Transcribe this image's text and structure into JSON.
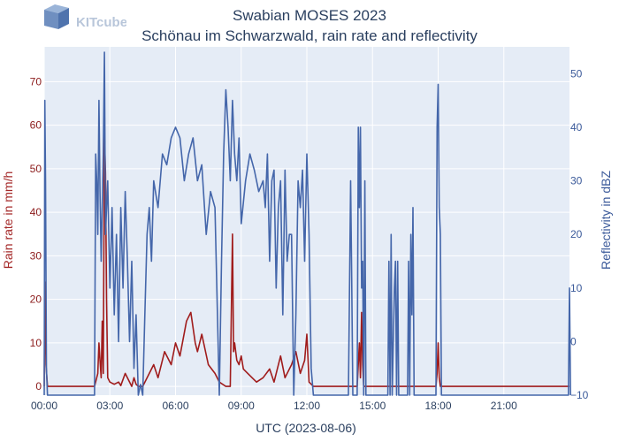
{
  "logo": {
    "text": "KITcube",
    "icon": "kitcube-cube-icon"
  },
  "title": {
    "line1": "Swabian MOSES 2023",
    "line2": "Schönau im Schwarzwald, rain rate and reflectivity"
  },
  "colors": {
    "rain": "#a01c1c",
    "reflectivity": "#4466aa",
    "plot_bg": "#e5ecf6",
    "grid": "#ffffff"
  },
  "chart_data": {
    "type": "line",
    "title": "Swabian MOSES 2023",
    "subtitle": "Schönau im Schwarzwald, rain rate and reflectivity",
    "xlabel": "UTC (2023-08-06)",
    "ylabel_left": "Rain rate in mm/h",
    "ylabel_right": "Reflectivity in dBZ",
    "x_range_hours": [
      0,
      24
    ],
    "x_ticks": [
      "00:00",
      "03:00",
      "06:00",
      "09:00",
      "12:00",
      "15:00",
      "18:00",
      "21:00"
    ],
    "y_left_range": [
      -2,
      78
    ],
    "y_left_ticks": [
      0,
      10,
      20,
      30,
      40,
      50,
      60,
      70
    ],
    "y_right_range": [
      -10,
      55
    ],
    "y_right_ticks": [
      -10,
      0,
      10,
      20,
      30,
      40,
      50
    ],
    "grid": true,
    "series": [
      {
        "name": "Rain rate",
        "axis": "left",
        "x": [
          0,
          0.03,
          0.08,
          0.15,
          2.3,
          2.45,
          2.5,
          2.55,
          2.6,
          2.65,
          2.7,
          2.75,
          2.8,
          2.85,
          2.9,
          3.0,
          3.2,
          3.4,
          3.5,
          3.7,
          4.0,
          4.1,
          4.2,
          4.3,
          4.5,
          5.0,
          5.2,
          5.5,
          5.8,
          6.0,
          6.2,
          6.5,
          6.7,
          6.9,
          7.0,
          7.2,
          7.5,
          7.8,
          8.0,
          8.3,
          8.5,
          8.6,
          8.65,
          8.7,
          8.8,
          8.9,
          9.0,
          9.1,
          9.3,
          9.5,
          9.7,
          10.0,
          10.3,
          10.5,
          10.8,
          11.0,
          11.3,
          11.5,
          11.7,
          11.9,
          12.0,
          12.1,
          12.3,
          14.3,
          14.4,
          14.45,
          14.5,
          14.55,
          14.6,
          14.7,
          17.9,
          17.95,
          18.0,
          18.05,
          18.1,
          24.0
        ],
        "y": [
          0,
          24,
          5,
          0,
          0,
          3,
          10,
          6,
          2,
          15,
          3,
          58,
          49,
          20,
          2,
          1,
          0.5,
          1,
          0.2,
          3,
          0,
          2,
          0.5,
          0,
          0,
          5,
          2,
          8,
          5,
          10,
          7,
          15,
          17,
          10,
          8,
          12,
          5,
          3,
          1,
          0,
          0,
          35,
          8,
          10,
          6,
          5,
          7,
          4,
          3,
          2,
          1,
          2,
          4,
          1,
          7,
          2,
          5,
          8,
          3,
          6,
          12,
          1,
          0,
          0,
          10,
          2,
          17,
          5,
          0,
          0,
          0,
          3,
          10,
          2,
          0,
          0
        ]
      },
      {
        "name": "Reflectivity",
        "axis": "right",
        "x": [
          0,
          0.03,
          0.06,
          0.1,
          0.15,
          0.2,
          2.3,
          2.35,
          2.4,
          2.45,
          2.5,
          2.55,
          2.6,
          2.7,
          2.75,
          2.8,
          2.9,
          3.0,
          3.1,
          3.2,
          3.3,
          3.4,
          3.5,
          3.6,
          3.7,
          3.8,
          3.9,
          4.0,
          4.1,
          4.2,
          4.3,
          4.4,
          4.5,
          4.6,
          4.7,
          4.8,
          4.9,
          5.0,
          5.2,
          5.4,
          5.6,
          5.8,
          6.0,
          6.2,
          6.4,
          6.6,
          6.8,
          7.0,
          7.2,
          7.4,
          7.6,
          7.8,
          8.0,
          8.1,
          8.2,
          8.3,
          8.4,
          8.5,
          8.6,
          8.7,
          8.8,
          8.9,
          9.0,
          9.2,
          9.4,
          9.6,
          9.8,
          10.0,
          10.1,
          10.2,
          10.3,
          10.4,
          10.5,
          10.6,
          10.7,
          10.8,
          10.9,
          11.0,
          11.1,
          11.2,
          11.3,
          11.4,
          11.5,
          11.6,
          11.7,
          11.8,
          11.9,
          12.0,
          12.1,
          12.2,
          12.3,
          12.35,
          13.9,
          14.0,
          14.05,
          14.1,
          14.3,
          14.35,
          14.4,
          14.45,
          14.5,
          14.55,
          14.6,
          14.65,
          14.7,
          14.75,
          15.7,
          15.75,
          15.8,
          15.85,
          15.9,
          16.0,
          16.05,
          16.1,
          16.15,
          16.2,
          16.6,
          16.65,
          16.7,
          16.75,
          16.8,
          16.85,
          16.9,
          17.9,
          17.95,
          18.0,
          18.05,
          18.1,
          18.15,
          23.9,
          23.95,
          24.0,
          24.05
        ],
        "y": [
          -10,
          45,
          30,
          -5,
          -10,
          -10,
          -10,
          35,
          30,
          20,
          45,
          28,
          15,
          35,
          54,
          20,
          30,
          10,
          25,
          5,
          20,
          0,
          25,
          10,
          28,
          15,
          0,
          15,
          -5,
          5,
          -10,
          -8,
          -10,
          5,
          20,
          25,
          15,
          30,
          25,
          35,
          33,
          38,
          40,
          38,
          30,
          35,
          38,
          30,
          33,
          20,
          28,
          25,
          -10,
          15,
          35,
          47,
          40,
          30,
          45,
          35,
          30,
          38,
          22,
          30,
          35,
          32,
          28,
          30,
          25,
          35,
          15,
          30,
          32,
          10,
          25,
          30,
          5,
          32,
          15,
          20,
          20,
          -10,
          5,
          30,
          25,
          32,
          15,
          35,
          20,
          -5,
          -10,
          -10,
          -10,
          30,
          12,
          -10,
          -10,
          40,
          25,
          40,
          10,
          15,
          -10,
          30,
          -10,
          -10,
          -10,
          15,
          -10,
          20,
          -10,
          10,
          15,
          -10,
          15,
          -10,
          -10,
          15,
          -10,
          20,
          5,
          25,
          -10,
          -10,
          40,
          48,
          25,
          20,
          -10,
          -10,
          -10,
          10,
          -10
        ]
      }
    ]
  }
}
